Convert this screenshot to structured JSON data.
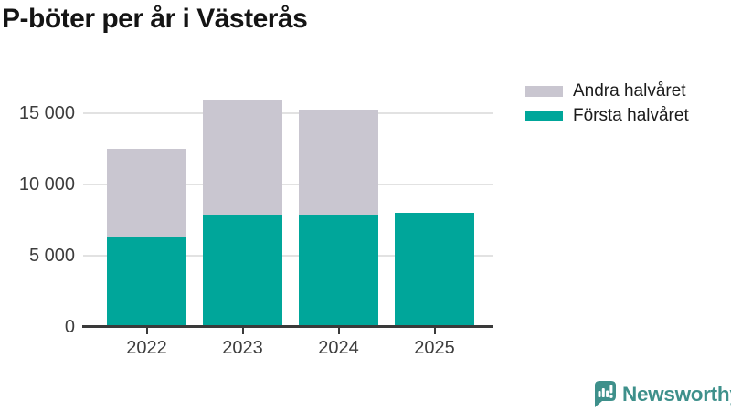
{
  "title": "P-böter per år i Västerås",
  "chart_data": {
    "type": "bar",
    "stacked": true,
    "title": "P-böter per år i Västerås",
    "categories": [
      "2022",
      "2023",
      "2024",
      "2025"
    ],
    "series": [
      {
        "name": "Första halvåret",
        "color": "#00A69A",
        "values": [
          6300,
          7850,
          7850,
          8000
        ]
      },
      {
        "name": "Andra halvåret",
        "color": "#C9C6D0",
        "values": [
          6150,
          8100,
          7350,
          0
        ]
      }
    ],
    "xlabel": "",
    "ylabel": "",
    "ylim": [
      0,
      16000
    ],
    "y_ticks": [
      0,
      5000,
      10000,
      15000
    ],
    "y_tick_labels": [
      "0",
      "5 000",
      "10 000",
      "15 000"
    ],
    "grid": true,
    "legend_position": "top-right",
    "legend": [
      {
        "label": "Andra halvåret",
        "color": "#C9C6D0"
      },
      {
        "label": "Första halvåret",
        "color": "#00A69A"
      }
    ]
  },
  "branding": {
    "logo_text": "Newsworthy",
    "logo_color": "#3E908B",
    "logo_icon": "speech-bubble-bar-chart-icon"
  }
}
